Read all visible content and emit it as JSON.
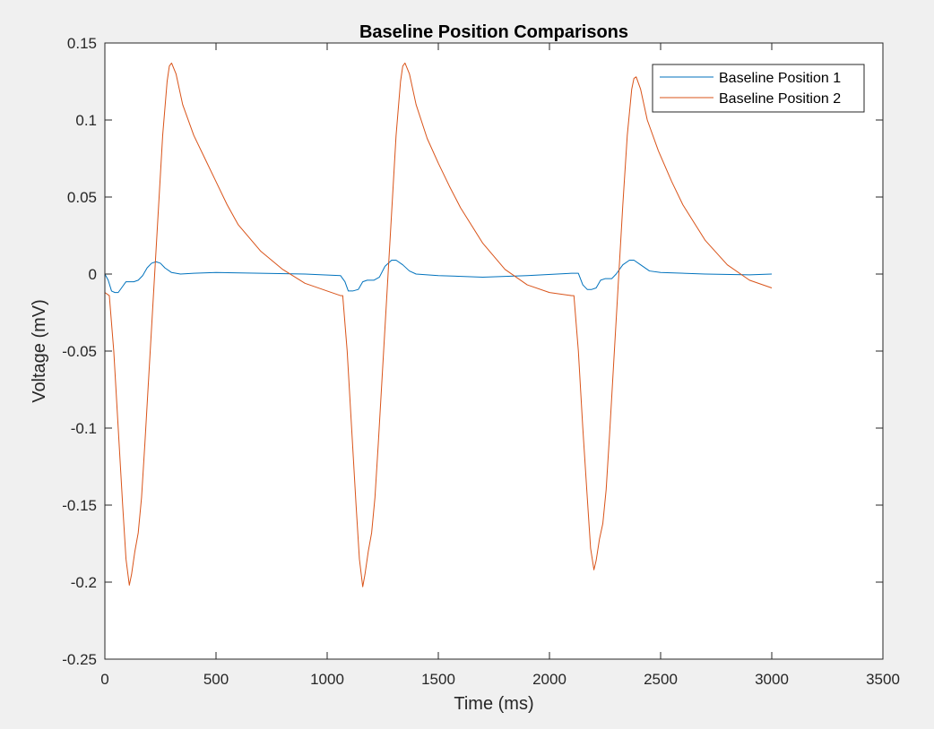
{
  "chart_data": {
    "type": "line",
    "title": "Baseline Position Comparisons",
    "xlabel": "Time (ms)",
    "ylabel": "Voltage (mV)",
    "xlim": [
      0,
      3500
    ],
    "ylim": [
      -0.25,
      0.15
    ],
    "xticks": [
      0,
      500,
      1000,
      1500,
      2000,
      2500,
      3000,
      3500
    ],
    "yticks": [
      -0.25,
      -0.2,
      -0.15,
      -0.1,
      -0.05,
      0,
      0.05,
      0.1,
      0.15
    ],
    "xtick_labels": [
      "0",
      "500",
      "1000",
      "1500",
      "2000",
      "2500",
      "3000",
      "3500"
    ],
    "ytick_labels": [
      "-0.25",
      "-0.2",
      "-0.15",
      "-0.1",
      "-0.05",
      "0",
      "0.05",
      "0.1",
      "0.15"
    ],
    "grid": false,
    "legend_position": "top-right",
    "series": [
      {
        "name": "Baseline Position 1",
        "color": "#0072bd",
        "points": [
          [
            0,
            0.0
          ],
          [
            15,
            -0.004
          ],
          [
            30,
            -0.011
          ],
          [
            45,
            -0.012
          ],
          [
            60,
            -0.012
          ],
          [
            80,
            -0.008
          ],
          [
            95,
            -0.005
          ],
          [
            110,
            -0.005
          ],
          [
            130,
            -0.005
          ],
          [
            150,
            -0.004
          ],
          [
            170,
            -0.001
          ],
          [
            190,
            0.004
          ],
          [
            210,
            0.007
          ],
          [
            230,
            0.008
          ],
          [
            250,
            0.007
          ],
          [
            270,
            0.004
          ],
          [
            300,
            0.001
          ],
          [
            340,
            0.0
          ],
          [
            400,
            0.0005
          ],
          [
            500,
            0.001
          ],
          [
            700,
            0.0005
          ],
          [
            900,
            0.0
          ],
          [
            1060,
            -0.001
          ],
          [
            1080,
            -0.005
          ],
          [
            1095,
            -0.011
          ],
          [
            1115,
            -0.011
          ],
          [
            1140,
            -0.01
          ],
          [
            1160,
            -0.005
          ],
          [
            1180,
            -0.004
          ],
          [
            1210,
            -0.004
          ],
          [
            1235,
            -0.002
          ],
          [
            1260,
            0.005
          ],
          [
            1290,
            0.009
          ],
          [
            1310,
            0.009
          ],
          [
            1340,
            0.006
          ],
          [
            1370,
            0.002
          ],
          [
            1400,
            0.0
          ],
          [
            1500,
            -0.001
          ],
          [
            1700,
            -0.002
          ],
          [
            1900,
            -0.001
          ],
          [
            2100,
            0.0005
          ],
          [
            2130,
            0.0005
          ],
          [
            2150,
            -0.007
          ],
          [
            2170,
            -0.01
          ],
          [
            2190,
            -0.01
          ],
          [
            2210,
            -0.009
          ],
          [
            2230,
            -0.004
          ],
          [
            2250,
            -0.003
          ],
          [
            2280,
            -0.003
          ],
          [
            2300,
            0.0
          ],
          [
            2330,
            0.006
          ],
          [
            2360,
            0.009
          ],
          [
            2380,
            0.009
          ],
          [
            2410,
            0.006
          ],
          [
            2450,
            0.002
          ],
          [
            2500,
            0.001
          ],
          [
            2700,
            0.0
          ],
          [
            2900,
            -0.0005
          ],
          [
            3000,
            0.0
          ]
        ]
      },
      {
        "name": "Baseline Position 2",
        "color": "#d95319",
        "points": [
          [
            0,
            -0.012
          ],
          [
            20,
            -0.014
          ],
          [
            40,
            -0.05
          ],
          [
            60,
            -0.1
          ],
          [
            80,
            -0.15
          ],
          [
            95,
            -0.185
          ],
          [
            110,
            -0.202
          ],
          [
            120,
            -0.195
          ],
          [
            135,
            -0.18
          ],
          [
            150,
            -0.168
          ],
          [
            165,
            -0.145
          ],
          [
            180,
            -0.11
          ],
          [
            200,
            -0.06
          ],
          [
            220,
            -0.01
          ],
          [
            240,
            0.04
          ],
          [
            260,
            0.09
          ],
          [
            280,
            0.125
          ],
          [
            290,
            0.135
          ],
          [
            300,
            0.137
          ],
          [
            320,
            0.13
          ],
          [
            350,
            0.11
          ],
          [
            400,
            0.09
          ],
          [
            450,
            0.075
          ],
          [
            500,
            0.06
          ],
          [
            550,
            0.045
          ],
          [
            600,
            0.032
          ],
          [
            700,
            0.015
          ],
          [
            800,
            0.003
          ],
          [
            900,
            -0.006
          ],
          [
            1000,
            -0.011
          ],
          [
            1060,
            -0.014
          ],
          [
            1070,
            -0.014
          ],
          [
            1090,
            -0.05
          ],
          [
            1110,
            -0.1
          ],
          [
            1130,
            -0.15
          ],
          [
            1145,
            -0.185
          ],
          [
            1160,
            -0.203
          ],
          [
            1170,
            -0.195
          ],
          [
            1185,
            -0.18
          ],
          [
            1200,
            -0.168
          ],
          [
            1215,
            -0.145
          ],
          [
            1230,
            -0.11
          ],
          [
            1250,
            -0.06
          ],
          [
            1270,
            -0.01
          ],
          [
            1290,
            0.04
          ],
          [
            1310,
            0.09
          ],
          [
            1330,
            0.125
          ],
          [
            1340,
            0.135
          ],
          [
            1350,
            0.137
          ],
          [
            1370,
            0.13
          ],
          [
            1400,
            0.11
          ],
          [
            1450,
            0.088
          ],
          [
            1500,
            0.072
          ],
          [
            1550,
            0.057
          ],
          [
            1600,
            0.043
          ],
          [
            1700,
            0.02
          ],
          [
            1800,
            0.003
          ],
          [
            1900,
            -0.007
          ],
          [
            2000,
            -0.012
          ],
          [
            2100,
            -0.014
          ],
          [
            2110,
            -0.014
          ],
          [
            2130,
            -0.05
          ],
          [
            2150,
            -0.1
          ],
          [
            2170,
            -0.145
          ],
          [
            2185,
            -0.178
          ],
          [
            2200,
            -0.192
          ],
          [
            2210,
            -0.186
          ],
          [
            2225,
            -0.172
          ],
          [
            2240,
            -0.162
          ],
          [
            2255,
            -0.14
          ],
          [
            2270,
            -0.105
          ],
          [
            2290,
            -0.055
          ],
          [
            2310,
            -0.005
          ],
          [
            2330,
            0.045
          ],
          [
            2350,
            0.09
          ],
          [
            2370,
            0.12
          ],
          [
            2380,
            0.127
          ],
          [
            2390,
            0.128
          ],
          [
            2410,
            0.12
          ],
          [
            2440,
            0.1
          ],
          [
            2490,
            0.08
          ],
          [
            2550,
            0.06
          ],
          [
            2600,
            0.045
          ],
          [
            2700,
            0.022
          ],
          [
            2800,
            0.006
          ],
          [
            2900,
            -0.004
          ],
          [
            3000,
            -0.009
          ]
        ]
      }
    ]
  }
}
